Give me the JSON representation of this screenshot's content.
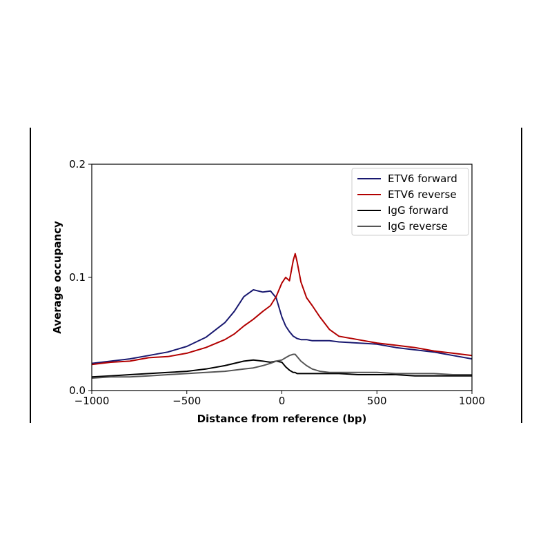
{
  "chart_data": {
    "type": "line",
    "xlabel": "Distance from reference (bp)",
    "ylabel": "Average occupancy",
    "xlim": [
      -1000,
      1000
    ],
    "ylim": [
      0.0,
      0.2
    ],
    "xticks": [
      -1000,
      -500,
      0,
      500,
      1000
    ],
    "xtick_labels": [
      "−1000",
      "−500",
      "0",
      "500",
      "1000"
    ],
    "yticks": [
      0.0,
      0.1,
      0.2
    ],
    "ytick_labels": [
      "0.0",
      "0.1",
      "0.2"
    ],
    "grid": false,
    "legend_position": "top-right",
    "x": [
      -1000,
      -900,
      -800,
      -700,
      -600,
      -500,
      -400,
      -300,
      -250,
      -200,
      -150,
      -100,
      -60,
      -30,
      0,
      20,
      40,
      60,
      70,
      80,
      100,
      130,
      160,
      200,
      250,
      300,
      400,
      500,
      600,
      700,
      800,
      900,
      1000
    ],
    "series": [
      {
        "name": "ETV6 forward",
        "color": "#191970",
        "values": [
          0.024,
          0.026,
          0.028,
          0.031,
          0.034,
          0.039,
          0.047,
          0.06,
          0.07,
          0.083,
          0.089,
          0.087,
          0.088,
          0.082,
          0.065,
          0.057,
          0.052,
          0.048,
          0.047,
          0.046,
          0.045,
          0.045,
          0.044,
          0.044,
          0.044,
          0.043,
          0.042,
          0.041,
          0.038,
          0.036,
          0.034,
          0.031,
          0.028
        ]
      },
      {
        "name": "ETV6 reverse",
        "color": "#b20000",
        "values": [
          0.023,
          0.025,
          0.026,
          0.029,
          0.03,
          0.033,
          0.038,
          0.045,
          0.05,
          0.057,
          0.063,
          0.07,
          0.075,
          0.083,
          0.095,
          0.1,
          0.097,
          0.115,
          0.121,
          0.114,
          0.096,
          0.082,
          0.075,
          0.065,
          0.054,
          0.048,
          0.045,
          0.042,
          0.04,
          0.038,
          0.035,
          0.033,
          0.031
        ]
      },
      {
        "name": "IgG forward",
        "color": "#000000",
        "values": [
          0.012,
          0.013,
          0.014,
          0.015,
          0.016,
          0.017,
          0.019,
          0.022,
          0.024,
          0.026,
          0.027,
          0.026,
          0.025,
          0.026,
          0.025,
          0.021,
          0.018,
          0.016,
          0.016,
          0.015,
          0.015,
          0.015,
          0.015,
          0.015,
          0.015,
          0.015,
          0.014,
          0.014,
          0.014,
          0.013,
          0.013,
          0.013,
          0.013
        ]
      },
      {
        "name": "IgG reverse",
        "color": "#555555",
        "values": [
          0.011,
          0.012,
          0.012,
          0.013,
          0.014,
          0.015,
          0.016,
          0.017,
          0.018,
          0.019,
          0.02,
          0.022,
          0.024,
          0.026,
          0.027,
          0.029,
          0.031,
          0.032,
          0.032,
          0.03,
          0.026,
          0.022,
          0.019,
          0.017,
          0.016,
          0.016,
          0.016,
          0.016,
          0.015,
          0.015,
          0.015,
          0.014,
          0.014
        ]
      }
    ]
  }
}
